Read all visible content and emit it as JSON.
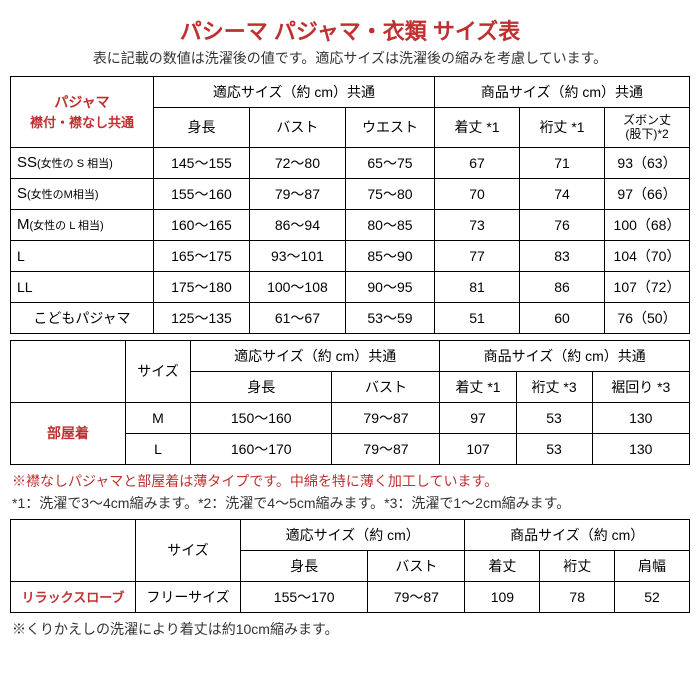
{
  "title": "パシーマ パジャマ・衣類 サイズ表",
  "subtitle": "表に記載の数値は洗濯後の値です。適応サイズは洗濯後の縮みを考慮しています。",
  "table1": {
    "row_label_l1": "パジャマ",
    "row_label_l2": "襟付・襟なし共通",
    "fit_header": "適応サイズ（約 cm）共通",
    "prod_header": "商品サイズ（約 cm）共通",
    "cols_fit": [
      "身長",
      "バスト",
      "ウエスト"
    ],
    "cols_prod": [
      "着丈 *1",
      "裄丈 *1",
      "ズボン丈\n(股下)*2"
    ],
    "rows": [
      {
        "label": "SS",
        "sub": "(女性の S 相当)",
        "c": [
          "145～155",
          "72～80",
          "65～75",
          "67",
          "71",
          "93（63）"
        ]
      },
      {
        "label": "S",
        "sub": "(女性のM相当)",
        "c": [
          "155～160",
          "79～87",
          "75～80",
          "70",
          "74",
          "97（66）"
        ]
      },
      {
        "label": "M",
        "sub": "(女性の L 相当)",
        "c": [
          "160～165",
          "86～94",
          "80～85",
          "73",
          "76",
          "100（68）"
        ]
      },
      {
        "label": "L",
        "sub": "",
        "c": [
          "165～175",
          "93～101",
          "85～90",
          "77",
          "83",
          "104（70）"
        ]
      },
      {
        "label": "LL",
        "sub": "",
        "c": [
          "175～180",
          "100～108",
          "90～95",
          "81",
          "86",
          "107（72）"
        ]
      },
      {
        "label": "こどもパジャマ",
        "sub": "",
        "c": [
          "125～135",
          "61～67",
          "53～59",
          "51",
          "60",
          "76（50）"
        ]
      }
    ]
  },
  "table2": {
    "row_label": "部屋着",
    "size_header": "サイズ",
    "fit_header": "適応サイズ（約 cm）共通",
    "prod_header": "商品サイズ（約 cm）共通",
    "cols_fit": [
      "身長",
      "バスト"
    ],
    "cols_prod": [
      "着丈 *1",
      "裄丈 *3",
      "裾回り *3"
    ],
    "rows": [
      {
        "size": "M",
        "c": [
          "150～160",
          "79～87",
          "97",
          "53",
          "130"
        ]
      },
      {
        "size": "L",
        "c": [
          "160～170",
          "79～87",
          "107",
          "53",
          "130"
        ]
      }
    ]
  },
  "note_red": "※襟なしパジャマと部屋着は薄タイプです。中綿を特に薄く加工しています。",
  "note1": "*1：洗濯で3～4cm縮みます。*2：洗濯で4～5cm縮みます。*3：洗濯で1～2cm縮みます。",
  "table3": {
    "row_label": "リラックスローブ",
    "size_header": "サイズ",
    "fit_header": "適応サイズ（約 cm）",
    "prod_header": "商品サイズ（約 cm）",
    "cols_fit": [
      "身長",
      "バスト"
    ],
    "cols_prod": [
      "着丈",
      "裄丈",
      "肩幅"
    ],
    "rows": [
      {
        "size": "フリーサイズ",
        "c": [
          "155～170",
          "79～87",
          "109",
          "78",
          "52"
        ]
      }
    ]
  },
  "note2": "※くりかえしの洗濯により着丈は約10cm縮みます。"
}
